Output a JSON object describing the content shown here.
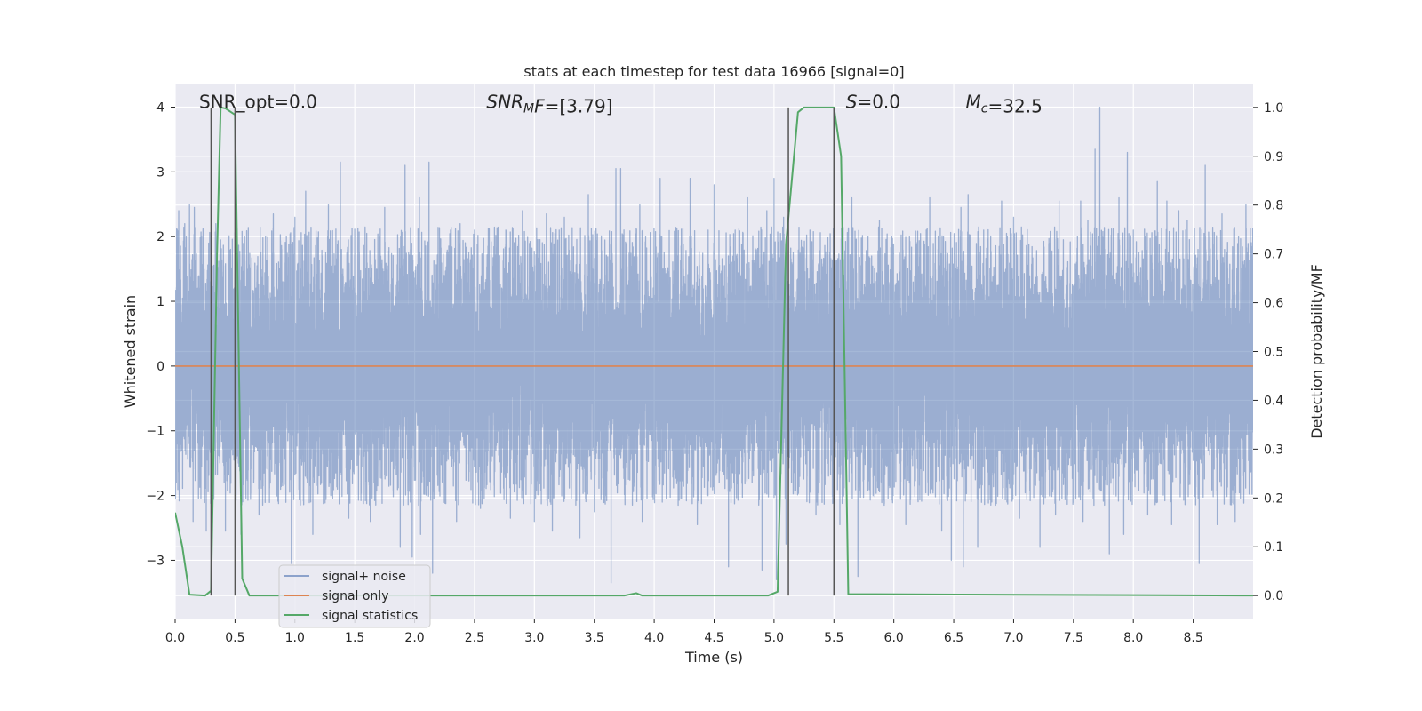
{
  "chart_data": {
    "type": "line",
    "title": "stats at each timestep for test data 16966 [signal=0]",
    "xlabel": "Time (s)",
    "ylabel_left": "Whitened strain",
    "ylabel_right": "Detection probability/MF",
    "xlim": [
      0.0,
      9.0
    ],
    "ylim_left": [
      -3.9,
      4.35
    ],
    "ylim_right": [
      -0.047,
      1.047
    ],
    "x_ticks": [
      0.0,
      0.5,
      1.0,
      1.5,
      2.0,
      2.5,
      3.0,
      3.5,
      4.0,
      4.5,
      5.0,
      5.5,
      6.0,
      6.5,
      7.0,
      7.5,
      8.0,
      8.5
    ],
    "x_tick_labels": [
      "0.0",
      "0.5",
      "1.0",
      "1.5",
      "2.0",
      "2.5",
      "3.0",
      "3.5",
      "4.0",
      "4.5",
      "5.0",
      "5.5",
      "6.0",
      "6.5",
      "7.0",
      "7.5",
      "8.0",
      "8.5"
    ],
    "y_ticks_left": [
      -3,
      -2,
      -1,
      0,
      1,
      2,
      3,
      4
    ],
    "y_tick_labels_left": [
      "−3",
      "−2",
      "−1",
      "0",
      "1",
      "2",
      "3",
      "4"
    ],
    "y_ticks_right": [
      0.0,
      0.1,
      0.2,
      0.3,
      0.4,
      0.5,
      0.6,
      0.7,
      0.8,
      0.9,
      1.0
    ],
    "y_tick_labels_right": [
      "0.0",
      "0.1",
      "0.2",
      "0.3",
      "0.4",
      "0.5",
      "0.6",
      "0.7",
      "0.8",
      "0.9",
      "1.0"
    ],
    "grid": true,
    "background": "#eaeaf2",
    "annotations": [
      {
        "id": "snr-opt",
        "parts": [
          {
            "text": "SNR_opt=0.0",
            "italic": false
          }
        ],
        "x": 0.2,
        "y": 4.0
      },
      {
        "id": "snr-mf",
        "parts": [
          {
            "text": "SNR",
            "italic": true
          },
          {
            "text": "M",
            "italic": true,
            "sub": true
          },
          {
            "text": "F",
            "italic": true
          },
          {
            "text": "=[3.79]",
            "italic": false
          }
        ],
        "x": 2.6,
        "y": 4.0
      },
      {
        "id": "s-stat",
        "parts": [
          {
            "text": "S",
            "italic": true
          },
          {
            "text": "=0.0",
            "italic": false
          }
        ],
        "x": 5.6,
        "y": 4.0
      },
      {
        "id": "chirp-mass",
        "parts": [
          {
            "text": "M",
            "italic": true
          },
          {
            "text": "c",
            "italic": true,
            "sub": true
          },
          {
            "text": "=32.5",
            "italic": false
          }
        ],
        "x": 6.6,
        "y": 4.0
      }
    ],
    "vlines": [
      0.3,
      0.5,
      5.12,
      5.5
    ],
    "vline_color": "#555555",
    "series": [
      {
        "name": "signal+ noise",
        "color": "#4c72b0",
        "axis": "left",
        "style": "noise",
        "duration": 9.0,
        "sample_rate": 2048,
        "amplitude_std": 1.0,
        "peaks": [
          [
            0.03,
            2.4
          ],
          [
            0.08,
            2.2
          ],
          [
            0.12,
            2.5
          ],
          [
            0.16,
            2.45
          ],
          [
            0.22,
            2.0
          ],
          [
            0.28,
            1.9
          ],
          [
            0.34,
            2.2
          ],
          [
            0.38,
            1.95
          ],
          [
            0.58,
            2.0
          ],
          [
            0.7,
            1.9
          ],
          [
            0.82,
            2.35
          ],
          [
            1.0,
            2.3
          ],
          [
            1.09,
            2.7
          ],
          [
            1.28,
            2.5
          ],
          [
            1.38,
            3.15
          ],
          [
            1.6,
            2.05
          ],
          [
            1.75,
            2.45
          ],
          [
            1.92,
            3.1
          ],
          [
            2.04,
            2.6
          ],
          [
            2.12,
            3.15
          ],
          [
            2.3,
            2.1
          ],
          [
            2.38,
            2.2
          ],
          [
            2.5,
            2.1
          ],
          [
            2.55,
            2.75
          ],
          [
            2.9,
            2.4
          ],
          [
            3.1,
            2.35
          ],
          [
            3.25,
            2.3
          ],
          [
            3.45,
            2.65
          ],
          [
            3.68,
            3.05
          ],
          [
            3.72,
            3.05
          ],
          [
            3.88,
            2.5
          ],
          [
            4.05,
            2.9
          ],
          [
            4.3,
            2.9
          ],
          [
            4.45,
            2.1
          ],
          [
            4.5,
            2.8
          ],
          [
            4.78,
            2.6
          ],
          [
            4.94,
            2.4
          ],
          [
            5.0,
            2.9
          ],
          [
            5.08,
            2.3
          ],
          [
            5.3,
            2.1
          ],
          [
            5.55,
            2.25
          ],
          [
            5.65,
            2.6
          ],
          [
            5.88,
            2.25
          ],
          [
            6.1,
            2.45
          ],
          [
            6.3,
            2.6
          ],
          [
            6.56,
            2.45
          ],
          [
            6.62,
            2.65
          ],
          [
            6.75,
            2.1
          ],
          [
            6.9,
            2.55
          ],
          [
            7.0,
            2.3
          ],
          [
            7.22,
            2.2
          ],
          [
            7.38,
            2.55
          ],
          [
            7.56,
            2.55
          ],
          [
            7.62,
            2.25
          ],
          [
            7.68,
            3.35
          ],
          [
            7.72,
            4.0
          ],
          [
            7.88,
            2.6
          ],
          [
            7.95,
            3.3
          ],
          [
            8.0,
            2.1
          ],
          [
            8.2,
            2.85
          ],
          [
            8.28,
            2.55
          ],
          [
            8.38,
            2.4
          ],
          [
            8.45,
            2.25
          ],
          [
            8.6,
            3.1
          ],
          [
            8.74,
            2.35
          ],
          [
            8.94,
            2.5
          ]
        ],
        "troughs": [
          [
            0.15,
            -2.4
          ],
          [
            0.26,
            -2.55
          ],
          [
            0.42,
            -2.55
          ],
          [
            0.55,
            -2.6
          ],
          [
            0.7,
            -2.3
          ],
          [
            0.97,
            -3.05
          ],
          [
            1.15,
            -2.6
          ],
          [
            1.3,
            -2.0
          ],
          [
            1.45,
            -2.35
          ],
          [
            1.63,
            -2.4
          ],
          [
            1.88,
            -2.8
          ],
          [
            1.98,
            -2.95
          ],
          [
            2.05,
            -2.6
          ],
          [
            2.15,
            -3.2
          ],
          [
            2.35,
            -2.4
          ],
          [
            2.55,
            -2.2
          ],
          [
            2.8,
            -2.35
          ],
          [
            3.0,
            -2.4
          ],
          [
            3.15,
            -2.55
          ],
          [
            3.38,
            -2.65
          ],
          [
            3.5,
            -2.25
          ],
          [
            3.64,
            -3.35
          ],
          [
            3.9,
            -2.4
          ],
          [
            4.2,
            -2.15
          ],
          [
            4.36,
            -2.45
          ],
          [
            4.62,
            -3.1
          ],
          [
            4.9,
            -3.15
          ],
          [
            5.02,
            -3.3
          ],
          [
            5.1,
            -2.75
          ],
          [
            5.35,
            -2.3
          ],
          [
            5.55,
            -2.45
          ],
          [
            5.7,
            -3.25
          ],
          [
            5.92,
            -2.15
          ],
          [
            6.1,
            -2.45
          ],
          [
            6.4,
            -2.55
          ],
          [
            6.48,
            -3.0
          ],
          [
            6.58,
            -3.1
          ],
          [
            6.7,
            -2.8
          ],
          [
            6.85,
            -2.15
          ],
          [
            7.05,
            -2.35
          ],
          [
            7.22,
            -2.8
          ],
          [
            7.35,
            -2.3
          ],
          [
            7.58,
            -2.4
          ],
          [
            7.8,
            -2.9
          ],
          [
            7.92,
            -2.6
          ],
          [
            8.12,
            -2.3
          ],
          [
            8.32,
            -2.45
          ],
          [
            8.55,
            -3.05
          ],
          [
            8.7,
            -2.45
          ],
          [
            8.85,
            -2.4
          ]
        ]
      },
      {
        "name": "signal only",
        "color": "#dd8452",
        "axis": "left",
        "x": [
          0.0,
          9.0
        ],
        "y": [
          0.0,
          0.0
        ]
      },
      {
        "name": "signal statistics",
        "color": "#55a868",
        "axis": "right",
        "x": [
          0.0,
          0.06,
          0.12,
          0.25,
          0.3,
          0.35,
          0.38,
          0.42,
          0.5,
          0.56,
          0.62,
          3.75,
          3.85,
          3.9,
          4.95,
          5.03,
          5.1,
          5.2,
          5.25,
          5.5,
          5.56,
          5.62,
          9.0
        ],
        "y": [
          0.17,
          0.1,
          0.002,
          0.0,
          0.01,
          0.7,
          1.0,
          0.998,
          0.985,
          0.035,
          0.0,
          0.0,
          0.005,
          0.0,
          0.0,
          0.008,
          0.72,
          0.99,
          1.0,
          1.0,
          0.9,
          0.003,
          0.0
        ]
      }
    ],
    "legend": {
      "placement": "lower-left",
      "entries": [
        "signal+ noise",
        "signal only",
        "signal statistics"
      ]
    }
  }
}
